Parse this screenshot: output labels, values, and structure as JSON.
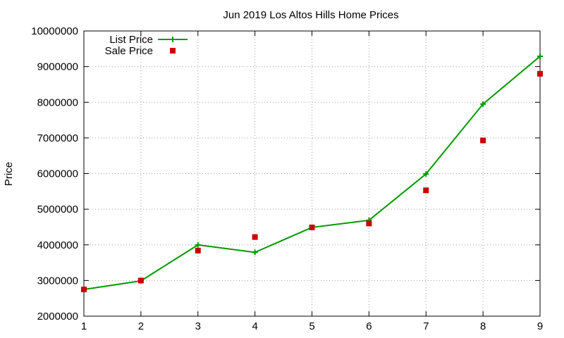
{
  "chart_data": {
    "type": "line",
    "title": "Jun 2019 Los Altos Hills Home Prices",
    "xlabel": "",
    "ylabel": "Price",
    "x": [
      1,
      2,
      3,
      4,
      5,
      6,
      7,
      8,
      9
    ],
    "xlim": [
      1,
      9
    ],
    "ylim": [
      2000000,
      10000000
    ],
    "x_ticks": [
      "1",
      "2",
      "3",
      "4",
      "5",
      "6",
      "7",
      "8",
      "9"
    ],
    "y_ticks": [
      "2000000",
      "3000000",
      "4000000",
      "5000000",
      "6000000",
      "7000000",
      "8000000",
      "9000000",
      "10000000"
    ],
    "grid": true,
    "legend_position": "top-left",
    "series": [
      {
        "name": "List Price",
        "style": "line-with-plus-markers",
        "color": "#009900",
        "values": [
          2750000,
          2990000,
          4000000,
          3790000,
          4490000,
          4690000,
          5990000,
          7950000,
          9290000
        ]
      },
      {
        "name": "Sale Price",
        "style": "square-markers",
        "color": "#cc0000",
        "values": [
          2750000,
          3000000,
          3840000,
          4220000,
          4490000,
          4600000,
          5530000,
          6930000,
          8800000
        ]
      }
    ]
  }
}
